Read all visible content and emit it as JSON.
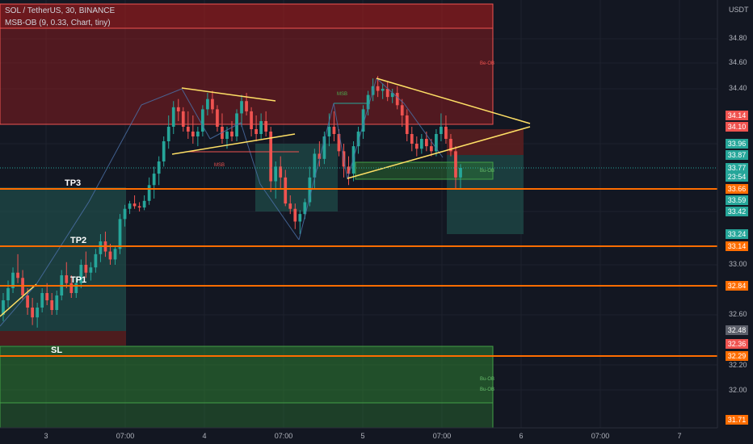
{
  "header": {
    "title": "SOL / TetherUS, 30, BINANCE",
    "indicator": "MSB-OB (9, 0.33, Chart, tiny)"
  },
  "colors": {
    "background": "#131722",
    "up_candle": "#26a69a",
    "down_candle": "#ef5350",
    "level_line": "#ff6d00",
    "trendline": "#ffe066",
    "bear_ob": "#b71c1c",
    "bull_ob": "#2e7d32",
    "target_zone": "#1f4f4a"
  },
  "chart_data": {
    "type": "candlestick",
    "symbol": "SOL / TetherUS",
    "interval": "30",
    "exchange": "BINANCE",
    "y_axis_unit": "USDT",
    "ylim": [
      31.7,
      35.0
    ],
    "y_ticks": [
      "34.80",
      "34.60",
      "34.40",
      "33.00",
      "32.60",
      "32.20",
      "32.00"
    ],
    "x_ticks": [
      "3",
      "07:00",
      "4",
      "07:00",
      "5",
      "07:00",
      "6",
      "07:00",
      "7"
    ],
    "levels": [
      {
        "label": "TP3",
        "price": 33.66
      },
      {
        "label": "TP2",
        "price": 33.14
      },
      {
        "label": "TP1",
        "price": 32.84
      },
      {
        "label": "SL",
        "price": 32.29
      }
    ],
    "price_tags": [
      {
        "value": "34.14",
        "kind": "red"
      },
      {
        "value": "34.10",
        "kind": "red"
      },
      {
        "value": "33.96",
        "kind": "teal"
      },
      {
        "value": "33.87",
        "kind": "teal"
      },
      {
        "value": "33.77",
        "kind": "teal"
      },
      {
        "value": "23:54",
        "kind": "teal"
      },
      {
        "value": "33.66",
        "kind": "orange"
      },
      {
        "value": "33.59",
        "kind": "teal"
      },
      {
        "value": "33.42",
        "kind": "teal"
      },
      {
        "value": "33.24",
        "kind": "teal"
      },
      {
        "value": "33.14",
        "kind": "orange"
      },
      {
        "value": "32.84",
        "kind": "orange"
      },
      {
        "value": "32.48",
        "kind": "gray"
      },
      {
        "value": "32.36",
        "kind": "red"
      },
      {
        "value": "32.29",
        "kind": "orange"
      },
      {
        "value": "31.71",
        "kind": "orange"
      }
    ],
    "annotations": [
      "MSB",
      "MSB",
      "Be-OB",
      "Bu-OB",
      "Bu-OB",
      "Bu-OB"
    ],
    "candles": [
      [
        32.6,
        32.78,
        32.55,
        32.72
      ],
      [
        32.72,
        32.88,
        32.66,
        32.82
      ],
      [
        32.82,
        32.98,
        32.78,
        32.94
      ],
      [
        32.94,
        33.08,
        32.86,
        32.9
      ],
      [
        32.9,
        32.96,
        32.72,
        32.76
      ],
      [
        32.76,
        32.82,
        32.6,
        32.66
      ],
      [
        32.66,
        32.74,
        32.52,
        32.58
      ],
      [
        32.58,
        32.7,
        32.5,
        32.66
      ],
      [
        32.66,
        32.82,
        32.62,
        32.78
      ],
      [
        32.78,
        32.86,
        32.68,
        32.72
      ],
      [
        32.72,
        32.78,
        32.6,
        32.64
      ],
      [
        32.64,
        32.8,
        32.6,
        32.76
      ],
      [
        32.76,
        32.96,
        32.72,
        32.92
      ],
      [
        32.92,
        33.02,
        32.82,
        32.86
      ],
      [
        32.86,
        32.92,
        32.74,
        32.78
      ],
      [
        32.78,
        32.9,
        32.74,
        32.86
      ],
      [
        32.86,
        33.04,
        32.82,
        33.0
      ],
      [
        33.0,
        33.1,
        32.9,
        32.94
      ],
      [
        32.94,
        33.02,
        32.88,
        32.98
      ],
      [
        32.98,
        33.12,
        32.94,
        33.08
      ],
      [
        33.08,
        33.24,
        33.02,
        33.18
      ],
      [
        33.18,
        33.26,
        33.06,
        33.1
      ],
      [
        33.1,
        33.16,
        33.0,
        33.04
      ],
      [
        33.04,
        33.14,
        33.0,
        33.12
      ],
      [
        33.12,
        33.4,
        33.08,
        33.36
      ],
      [
        33.36,
        33.52,
        33.3,
        33.46
      ],
      [
        33.46,
        33.58,
        33.4,
        33.54
      ],
      [
        33.54,
        33.62,
        33.46,
        33.5
      ],
      [
        33.5,
        33.56,
        33.42,
        33.48
      ],
      [
        33.48,
        33.62,
        33.44,
        33.58
      ],
      [
        33.58,
        33.72,
        33.52,
        33.68
      ],
      [
        33.68,
        33.78,
        33.6,
        33.74
      ],
      [
        33.74,
        33.86,
        33.68,
        33.82
      ],
      [
        33.82,
        34.02,
        33.78,
        33.98
      ],
      [
        33.98,
        34.14,
        33.92,
        34.1
      ],
      [
        34.1,
        34.28,
        34.04,
        34.22
      ],
      [
        34.22,
        34.3,
        34.12,
        34.18
      ],
      [
        34.18,
        34.22,
        34.06,
        34.1
      ],
      [
        34.1,
        34.18,
        34.0,
        34.06
      ],
      [
        34.06,
        34.14,
        33.96,
        34.02
      ],
      [
        34.02,
        34.1,
        33.94,
        34.06
      ],
      [
        34.06,
        34.24,
        34.02,
        34.2
      ],
      [
        34.2,
        34.36,
        34.14,
        34.3
      ],
      [
        34.3,
        34.38,
        34.16,
        34.2
      ],
      [
        34.2,
        34.24,
        34.06,
        34.1
      ],
      [
        34.1,
        34.16,
        33.96,
        34.0
      ],
      [
        34.0,
        34.1,
        33.92,
        34.06
      ],
      [
        34.06,
        34.12,
        33.98,
        34.02
      ],
      [
        34.02,
        34.2,
        33.98,
        34.16
      ],
      [
        34.16,
        34.34,
        34.1,
        34.28
      ],
      [
        34.28,
        34.36,
        34.14,
        34.18
      ],
      [
        34.18,
        34.22,
        34.02,
        34.08
      ],
      [
        34.08,
        34.14,
        33.98,
        34.04
      ],
      [
        34.04,
        34.16,
        34.0,
        34.12
      ],
      [
        34.12,
        34.18,
        34.02,
        34.06
      ],
      [
        34.06,
        34.1,
        33.64,
        33.7
      ],
      [
        33.7,
        33.82,
        33.6,
        33.78
      ],
      [
        33.78,
        33.86,
        33.66,
        33.72
      ],
      [
        33.72,
        33.76,
        33.5,
        33.54
      ],
      [
        33.54,
        33.62,
        33.4,
        33.46
      ],
      [
        33.46,
        33.54,
        33.28,
        33.34
      ],
      [
        33.34,
        33.44,
        33.24,
        33.4
      ],
      [
        33.4,
        33.6,
        33.36,
        33.56
      ],
      [
        33.56,
        33.78,
        33.5,
        33.72
      ],
      [
        33.72,
        33.92,
        33.66,
        33.88
      ],
      [
        33.88,
        33.98,
        33.78,
        33.84
      ],
      [
        33.84,
        34.06,
        33.8,
        34.02
      ],
      [
        34.02,
        34.16,
        33.94,
        34.1
      ],
      [
        34.1,
        34.18,
        33.98,
        34.04
      ],
      [
        34.04,
        34.08,
        33.86,
        33.9
      ],
      [
        33.9,
        33.96,
        33.72,
        33.78
      ],
      [
        33.78,
        33.86,
        33.68,
        33.74
      ],
      [
        33.74,
        33.98,
        33.7,
        33.94
      ],
      [
        33.94,
        34.1,
        33.88,
        34.06
      ],
      [
        34.06,
        34.24,
        34.0,
        34.2
      ],
      [
        34.2,
        34.38,
        34.14,
        34.34
      ],
      [
        34.34,
        34.48,
        34.28,
        34.42
      ],
      [
        34.42,
        34.5,
        34.32,
        34.38
      ],
      [
        34.38,
        34.44,
        34.3,
        34.4
      ],
      [
        34.4,
        34.46,
        34.28,
        34.32
      ],
      [
        34.32,
        34.4,
        34.26,
        34.36
      ],
      [
        34.36,
        34.42,
        34.2,
        34.24
      ],
      [
        34.24,
        34.3,
        34.1,
        34.14
      ],
      [
        34.14,
        34.2,
        33.98,
        34.04
      ],
      [
        34.04,
        34.1,
        33.9,
        33.96
      ],
      [
        33.96,
        34.02,
        33.86,
        33.92
      ],
      [
        33.92,
        34.04,
        33.88,
        34.0
      ],
      [
        34.0,
        34.06,
        33.9,
        33.94
      ],
      [
        33.94,
        34.0,
        33.86,
        33.9
      ],
      [
        33.9,
        34.08,
        33.86,
        34.04
      ],
      [
        34.04,
        34.16,
        33.98,
        34.1
      ],
      [
        34.1,
        34.14,
        33.96,
        34.0
      ],
      [
        34.0,
        34.04,
        33.86,
        33.9
      ],
      [
        33.9,
        33.94,
        33.66,
        33.72
      ],
      [
        33.72,
        33.8,
        33.66,
        33.77
      ]
    ]
  }
}
